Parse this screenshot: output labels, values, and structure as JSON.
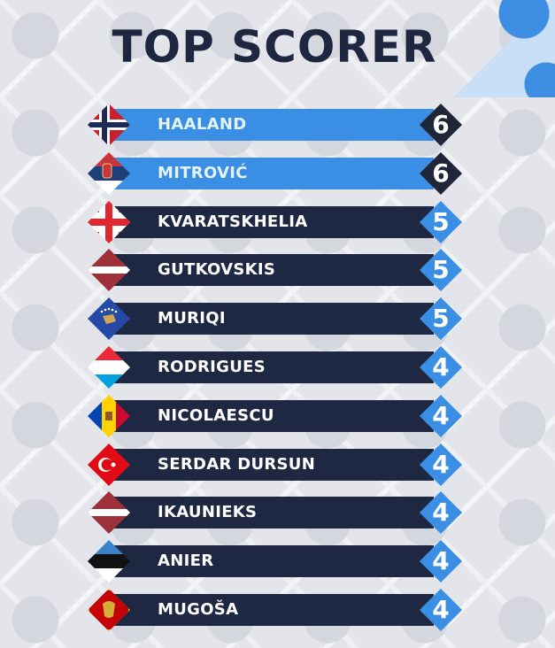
{
  "title": "TOP SCORER",
  "colors": {
    "title": "#1e2640",
    "highlight_bar": "#3a8ee4",
    "bar": "#1f2843",
    "highlight_score": "#1e2638",
    "score": "#3a8ee4"
  },
  "players": [
    {
      "name": "HAALAND",
      "country": "Norway",
      "flag": "norway-flag-icon",
      "goals": "6",
      "highlight": true
    },
    {
      "name": "MITROVIĆ",
      "country": "Serbia",
      "flag": "serbia-flag-icon",
      "goals": "6",
      "highlight": true
    },
    {
      "name": "KVARATSKHELIA",
      "country": "Georgia",
      "flag": "georgia-flag-icon",
      "goals": "5",
      "highlight": false
    },
    {
      "name": "GUTKOVSKIS",
      "country": "Latvia",
      "flag": "latvia-flag-icon",
      "goals": "5",
      "highlight": false
    },
    {
      "name": "MURIQI",
      "country": "Kosovo",
      "flag": "kosovo-flag-icon",
      "goals": "5",
      "highlight": false
    },
    {
      "name": "RODRIGUES",
      "country": "Luxembourg",
      "flag": "luxembourg-flag-icon",
      "goals": "4",
      "highlight": false
    },
    {
      "name": "NICOLAESCU",
      "country": "Moldova",
      "flag": "moldova-flag-icon",
      "goals": "4",
      "highlight": false
    },
    {
      "name": "SERDAR DURSUN",
      "country": "Turkey",
      "flag": "turkey-flag-icon",
      "goals": "4",
      "highlight": false
    },
    {
      "name": "IKAUNIEKS",
      "country": "Latvia",
      "flag": "latvia-flag-icon",
      "goals": "4",
      "highlight": false
    },
    {
      "name": "ANIER",
      "country": "Estonia",
      "flag": "estonia-flag-icon",
      "goals": "4",
      "highlight": false
    },
    {
      "name": "MUGOŠA",
      "country": "Montenegro",
      "flag": "montenegro-flag-icon",
      "goals": "4",
      "highlight": false
    }
  ]
}
